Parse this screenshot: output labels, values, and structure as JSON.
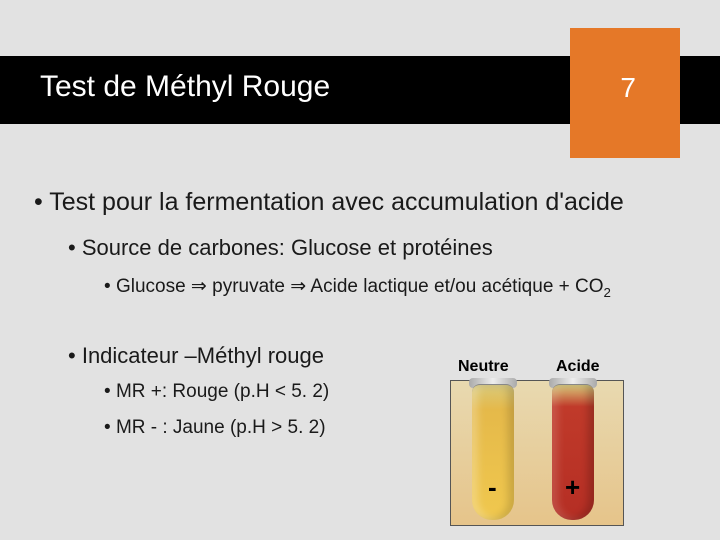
{
  "header": {
    "title": "Test de Méthyl Rouge",
    "page_number": "7",
    "colors": {
      "bar": "#000000",
      "accent": "#e57828",
      "title_text": "#ffffff"
    }
  },
  "content": {
    "lvl1": "Test pour la fermentation avec accumulation d'acide",
    "lvl2_source": "Source de carbones: Glucose et protéines",
    "lvl3_pathway_pre": "Glucose ",
    "lvl3_pathway_mid": " pyruvate ",
    "lvl3_pathway_post": " Acide lactique et/ou acétique + CO",
    "lvl3_pathway_sub": "2",
    "arrow": "⇒",
    "lvl2_indicator": "Indicateur –Méthyl rouge",
    "lvl3_pos": "MR +: Rouge (p.H < 5. 2)",
    "lvl3_neg": "MR - : Jaune (p.H > 5. 2)"
  },
  "figure": {
    "label_neutral": "Neutre",
    "label_acid": "Acide",
    "sign_neg": "-",
    "sign_pos": "+",
    "tube_neutral_color": "#f0c84e",
    "tube_acid_color": "#b52e24"
  }
}
